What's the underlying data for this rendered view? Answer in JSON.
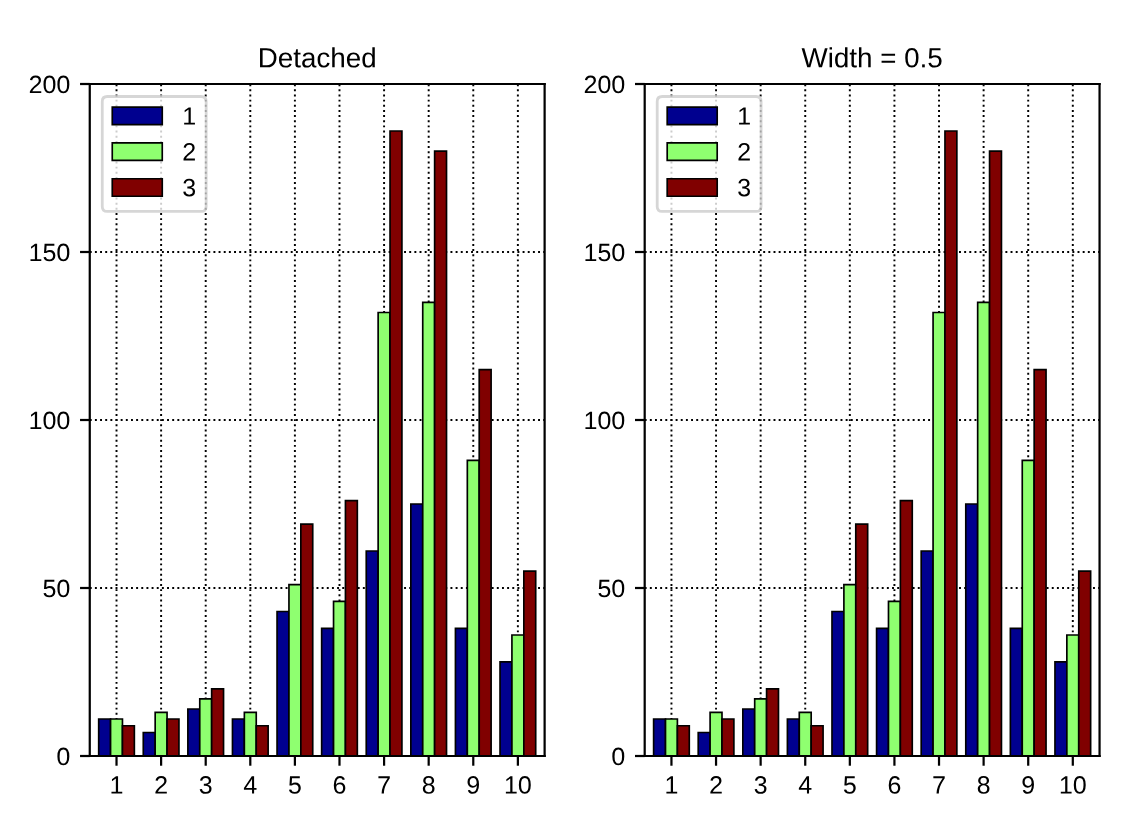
{
  "chart_data": [
    {
      "type": "bar",
      "title": "Detached",
      "categories": [
        "1",
        "2",
        "3",
        "4",
        "5",
        "6",
        "7",
        "8",
        "9",
        "10"
      ],
      "series": [
        {
          "name": "1",
          "color": "#00008f",
          "values": [
            11,
            7,
            14,
            11,
            43,
            38,
            61,
            75,
            38,
            28
          ]
        },
        {
          "name": "2",
          "color": "#8fff70",
          "values": [
            11,
            13,
            17,
            13,
            51,
            46,
            132,
            135,
            88,
            36
          ]
        },
        {
          "name": "3",
          "color": "#800000",
          "values": [
            9,
            11,
            20,
            9,
            69,
            76,
            186,
            180,
            115,
            55
          ]
        }
      ],
      "ylim": [
        0,
        200
      ],
      "yticks": [
        0,
        50,
        100,
        150,
        200
      ],
      "grid": true,
      "legend": "top left"
    },
    {
      "type": "bar",
      "title": "Width = 0.5",
      "categories": [
        "1",
        "2",
        "3",
        "4",
        "5",
        "6",
        "7",
        "8",
        "9",
        "10"
      ],
      "series": [
        {
          "name": "1",
          "color": "#00008f",
          "values": [
            11,
            7,
            14,
            11,
            43,
            38,
            61,
            75,
            38,
            28
          ]
        },
        {
          "name": "2",
          "color": "#8fff70",
          "values": [
            11,
            13,
            17,
            13,
            51,
            46,
            132,
            135,
            88,
            36
          ]
        },
        {
          "name": "3",
          "color": "#800000",
          "values": [
            9,
            11,
            20,
            9,
            69,
            76,
            186,
            180,
            115,
            55
          ]
        }
      ],
      "ylim": [
        0,
        200
      ],
      "yticks": [
        0,
        50,
        100,
        150,
        200
      ],
      "grid": true,
      "legend": "top left"
    }
  ]
}
